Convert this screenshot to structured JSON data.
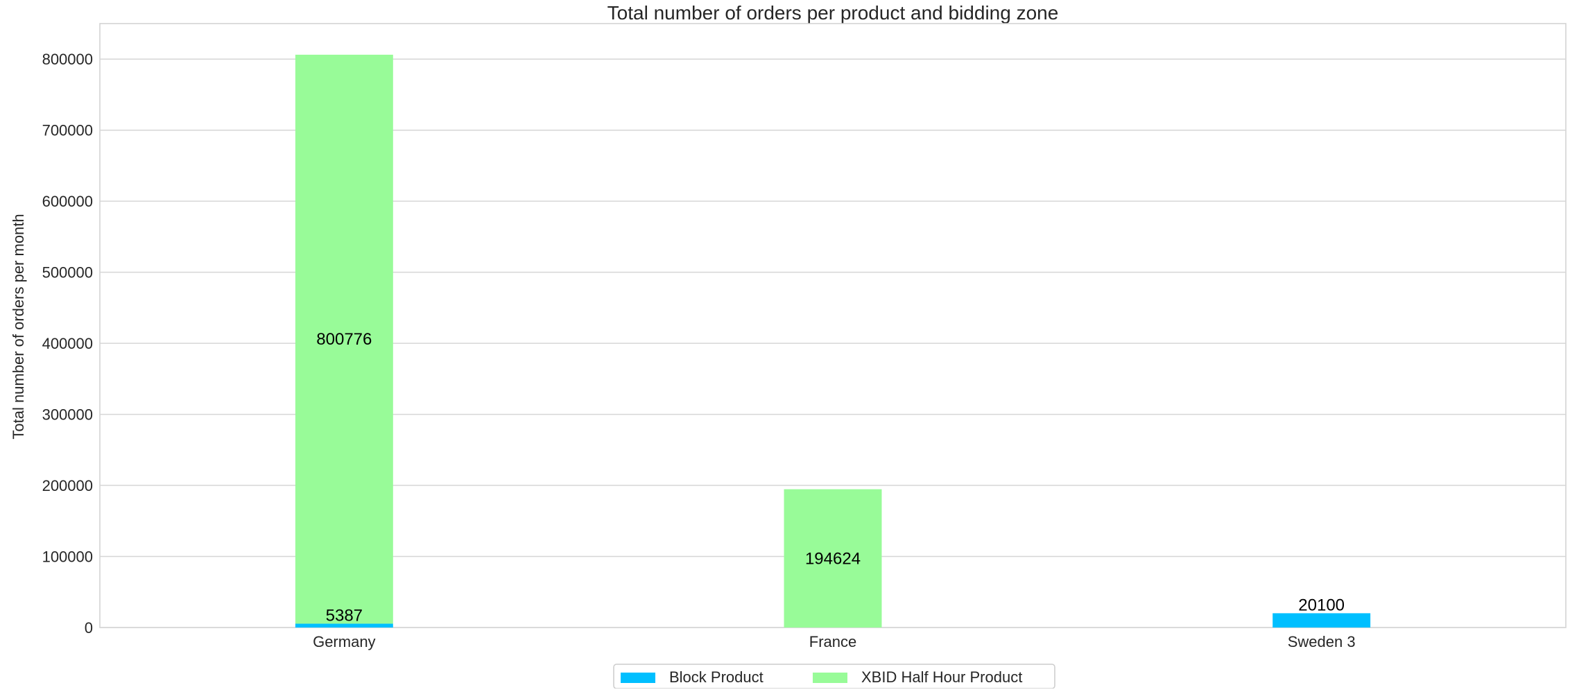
{
  "chart_data": {
    "type": "bar",
    "stacked": true,
    "title": "Total number of orders per product and bidding zone",
    "xlabel": "",
    "ylabel": "Total number of orders per month",
    "categories": [
      "Germany",
      "France",
      "Sweden 3"
    ],
    "series": [
      {
        "name": "Block Product",
        "color": "#00bfff",
        "values": [
          5387,
          0,
          20100
        ],
        "labels": [
          "5387",
          "",
          "20100"
        ]
      },
      {
        "name": "XBID Half Hour Product",
        "color": "#98fb98",
        "values": [
          800776,
          194624,
          0
        ],
        "labels": [
          "800776",
          "194624",
          ""
        ]
      }
    ],
    "ylim": [
      0,
      850000
    ],
    "yticks": [
      0,
      100000,
      200000,
      300000,
      400000,
      500000,
      600000,
      700000,
      800000
    ],
    "ytick_labels": [
      "0",
      "100000",
      "200000",
      "300000",
      "400000",
      "500000",
      "600000",
      "700000",
      "800000"
    ],
    "grid": true,
    "legend": {
      "placement": "bottom-center",
      "entries": [
        "Block Product",
        "XBID Half Hour Product"
      ]
    }
  }
}
